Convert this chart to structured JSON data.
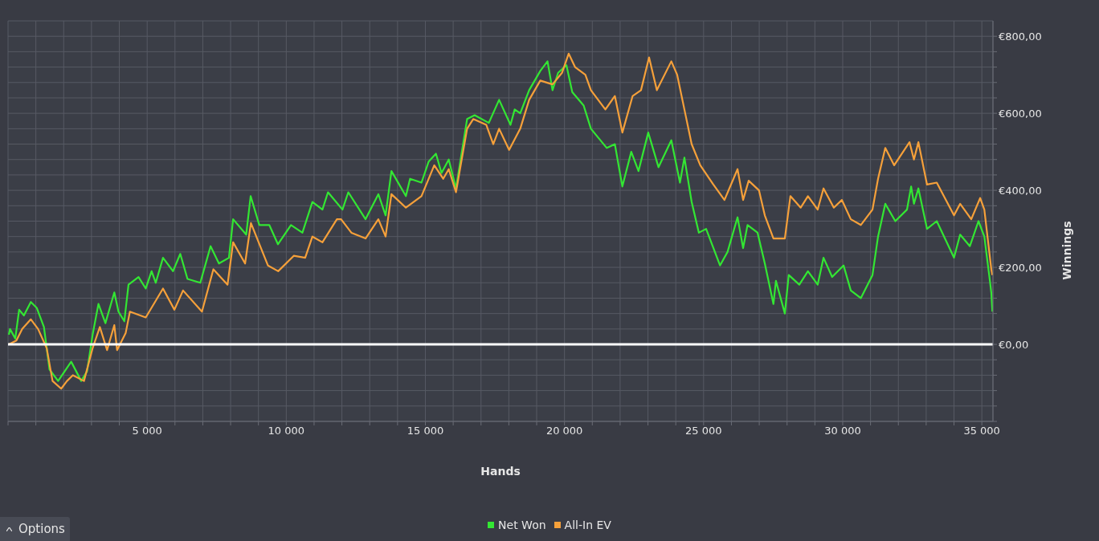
{
  "chart_data": {
    "type": "line",
    "xlabel": "Hands",
    "ylabel": "Winnings",
    "xlim": [
      0,
      35400
    ],
    "ylim": [
      -200,
      840
    ],
    "xticks": [
      {
        "value": 0,
        "label": null
      },
      {
        "value": 1000,
        "label": null
      },
      {
        "value": 2000,
        "label": null
      },
      {
        "value": 3000,
        "label": null
      },
      {
        "value": 4000,
        "label": null
      },
      {
        "value": 5000,
        "label": "5 000"
      },
      {
        "value": 6000,
        "label": null
      },
      {
        "value": 7000,
        "label": null
      },
      {
        "value": 8000,
        "label": null
      },
      {
        "value": 9000,
        "label": null
      },
      {
        "value": 10000,
        "label": "10 000"
      },
      {
        "value": 11000,
        "label": null
      },
      {
        "value": 12000,
        "label": null
      },
      {
        "value": 13000,
        "label": null
      },
      {
        "value": 14000,
        "label": null
      },
      {
        "value": 15000,
        "label": "15 000"
      },
      {
        "value": 16000,
        "label": null
      },
      {
        "value": 17000,
        "label": null
      },
      {
        "value": 18000,
        "label": null
      },
      {
        "value": 19000,
        "label": null
      },
      {
        "value": 20000,
        "label": "20 000"
      },
      {
        "value": 21000,
        "label": null
      },
      {
        "value": 22000,
        "label": null
      },
      {
        "value": 23000,
        "label": null
      },
      {
        "value": 24000,
        "label": null
      },
      {
        "value": 25000,
        "label": "25 000"
      },
      {
        "value": 26000,
        "label": null
      },
      {
        "value": 27000,
        "label": null
      },
      {
        "value": 28000,
        "label": null
      },
      {
        "value": 29000,
        "label": null
      },
      {
        "value": 30000,
        "label": "30 000"
      },
      {
        "value": 31000,
        "label": null
      },
      {
        "value": 32000,
        "label": null
      },
      {
        "value": 33000,
        "label": null
      },
      {
        "value": 34000,
        "label": null
      },
      {
        "value": 35000,
        "label": "35 000"
      }
    ],
    "yticks": [
      {
        "value": -200,
        "label": null
      },
      {
        "value": -160,
        "label": null
      },
      {
        "value": -120,
        "label": null
      },
      {
        "value": -80,
        "label": null
      },
      {
        "value": -40,
        "label": null
      },
      {
        "value": 0,
        "label": "€0,00"
      },
      {
        "value": 40,
        "label": null
      },
      {
        "value": 80,
        "label": null
      },
      {
        "value": 120,
        "label": null
      },
      {
        "value": 160,
        "label": null
      },
      {
        "value": 200,
        "label": "€200,00"
      },
      {
        "value": 240,
        "label": null
      },
      {
        "value": 280,
        "label": null
      },
      {
        "value": 320,
        "label": null
      },
      {
        "value": 360,
        "label": null
      },
      {
        "value": 400,
        "label": "€400,00"
      },
      {
        "value": 440,
        "label": null
      },
      {
        "value": 480,
        "label": null
      },
      {
        "value": 520,
        "label": null
      },
      {
        "value": 560,
        "label": null
      },
      {
        "value": 600,
        "label": "€600,00"
      },
      {
        "value": 640,
        "label": null
      },
      {
        "value": 680,
        "label": null
      },
      {
        "value": 720,
        "label": null
      },
      {
        "value": 760,
        "label": null
      },
      {
        "value": 800,
        "label": "€800,00"
      }
    ],
    "grid": true,
    "legend": "bottom",
    "marker": "none",
    "line_style": "solid",
    "ref_lines": [
      {
        "axis": "y",
        "value": 0,
        "color": "#ffffff"
      }
    ],
    "annotations": [
      "Options"
    ],
    "series": [
      {
        "name": "Net Won",
        "color": "#33e633",
        "x": [
          30,
          70,
          260,
          400,
          570,
          820,
          1030,
          1290,
          1490,
          1800,
          2270,
          2630,
          2840,
          3040,
          3250,
          3500,
          3820,
          3970,
          4180,
          4330,
          4690,
          4950,
          5160,
          5310,
          5570,
          5930,
          6190,
          6450,
          6910,
          7280,
          7580,
          7940,
          8090,
          8560,
          8720,
          9030,
          9390,
          9700,
          10170,
          10580,
          10940,
          11300,
          11500,
          12020,
          12230,
          12850,
          13310,
          13570,
          13780,
          14300,
          14450,
          14860,
          15120,
          15380,
          15580,
          15840,
          16100,
          16500,
          16770,
          17280,
          17650,
          18060,
          18210,
          18410,
          18730,
          19130,
          19390,
          19570,
          19770,
          20070,
          20280,
          20690,
          20950,
          21520,
          21810,
          22080,
          22400,
          22660,
          23010,
          23380,
          23840,
          24150,
          24310,
          24570,
          24830,
          25090,
          25590,
          25860,
          26220,
          26420,
          26580,
          26940,
          27200,
          27510,
          27600,
          27920,
          28060,
          28440,
          28750,
          29100,
          29310,
          29620,
          30030,
          30290,
          30650,
          31070,
          31270,
          31530,
          31890,
          32310,
          32460,
          32560,
          32720,
          33030,
          33380,
          34000,
          34220,
          34570,
          34880,
          35090,
          35290,
          35340,
          35380
        ],
        "values": [
          25,
          40,
          15,
          90,
          75,
          110,
          95,
          45,
          -65,
          -95,
          -45,
          -95,
          -70,
          25,
          105,
          55,
          135,
          85,
          60,
          155,
          175,
          145,
          190,
          160,
          225,
          190,
          235,
          170,
          160,
          255,
          210,
          225,
          325,
          285,
          385,
          310,
          310,
          260,
          310,
          290,
          370,
          350,
          395,
          350,
          395,
          325,
          390,
          335,
          450,
          385,
          430,
          420,
          475,
          495,
          445,
          480,
          405,
          585,
          595,
          575,
          635,
          570,
          610,
          600,
          660,
          710,
          735,
          660,
          705,
          725,
          655,
          620,
          560,
          510,
          520,
          410,
          500,
          450,
          550,
          460,
          530,
          420,
          485,
          370,
          290,
          300,
          205,
          240,
          330,
          250,
          310,
          290,
          210,
          105,
          165,
          80,
          180,
          155,
          190,
          155,
          225,
          175,
          205,
          140,
          120,
          180,
          280,
          365,
          320,
          350,
          410,
          365,
          405,
          300,
          320,
          225,
          285,
          255,
          320,
          280,
          165,
          135,
          85
        ]
      },
      {
        "name": "All-In EV",
        "color": "#f5a03a",
        "x": [
          30,
          300,
          510,
          820,
          1080,
          1390,
          1600,
          1910,
          2120,
          2330,
          2730,
          3040,
          3300,
          3560,
          3820,
          3920,
          4230,
          4380,
          4950,
          5570,
          5980,
          6290,
          6970,
          7380,
          7890,
          8090,
          8520,
          8730,
          9340,
          9710,
          10270,
          10680,
          10940,
          11300,
          11820,
          11970,
          12340,
          12850,
          13310,
          13570,
          13780,
          14300,
          14860,
          15320,
          15640,
          15840,
          16100,
          16500,
          16720,
          17190,
          17440,
          17650,
          18010,
          18410,
          18730,
          19130,
          19570,
          19910,
          20150,
          20380,
          20750,
          20950,
          21470,
          21810,
          22080,
          22450,
          22750,
          23040,
          23320,
          23840,
          24050,
          24310,
          24570,
          24880,
          25350,
          25750,
          26220,
          26420,
          26620,
          26990,
          27200,
          27510,
          27920,
          28120,
          28490,
          28750,
          29100,
          29310,
          29680,
          29970,
          30290,
          30650,
          31070,
          31270,
          31530,
          31850,
          32400,
          32560,
          32720,
          33030,
          33380,
          34000,
          34220,
          34620,
          34940,
          35090,
          35340,
          35380
        ],
        "values": [
          0,
          10,
          40,
          65,
          40,
          -10,
          -95,
          -115,
          -95,
          -80,
          -95,
          -10,
          45,
          -15,
          50,
          -15,
          30,
          85,
          70,
          145,
          90,
          140,
          85,
          195,
          155,
          265,
          210,
          315,
          205,
          190,
          230,
          225,
          280,
          265,
          325,
          325,
          290,
          275,
          325,
          280,
          390,
          355,
          385,
          465,
          430,
          455,
          395,
          560,
          585,
          570,
          520,
          560,
          505,
          560,
          635,
          685,
          675,
          705,
          755,
          720,
          700,
          660,
          610,
          645,
          550,
          645,
          660,
          745,
          660,
          735,
          700,
          610,
          520,
          465,
          415,
          375,
          455,
          375,
          425,
          400,
          335,
          275,
          275,
          385,
          355,
          385,
          350,
          405,
          355,
          375,
          325,
          310,
          350,
          430,
          510,
          465,
          525,
          480,
          525,
          415,
          420,
          335,
          365,
          325,
          380,
          350,
          195,
          180
        ]
      }
    ]
  }
}
